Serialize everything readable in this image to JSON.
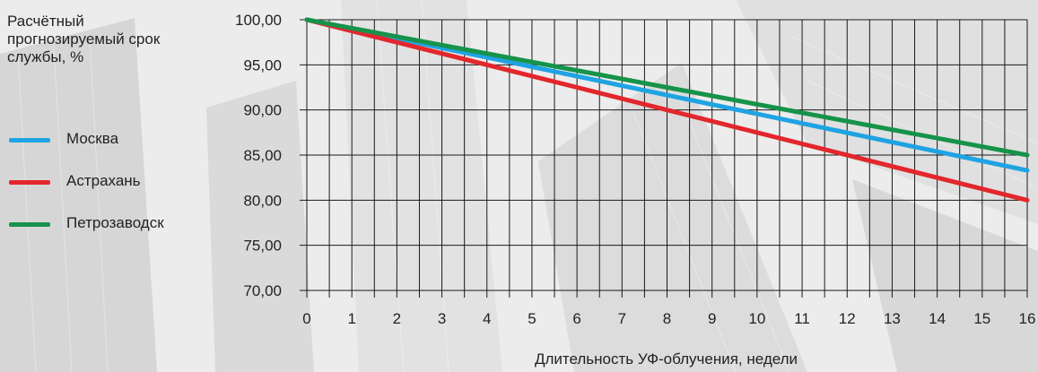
{
  "chart_data": {
    "type": "line",
    "ylabel": "Расчётный прогнозируемый срок службы, %",
    "xlabel": "Длительность УФ-облучения, недели",
    "x": [
      0,
      16
    ],
    "x_ticks": [
      "0",
      "1",
      "2",
      "3",
      "4",
      "5",
      "6",
      "7",
      "8",
      "9",
      "10",
      "11",
      "12",
      "13",
      "14",
      "15",
      "16"
    ],
    "y_ticks": [
      "100,00",
      "95,00",
      "90,00",
      "85,00",
      "80,00",
      "75,00",
      "70,00"
    ],
    "xlim": [
      0,
      16
    ],
    "ylim": [
      70,
      100
    ],
    "grid": true,
    "legend_position": "left",
    "series": [
      {
        "name": "Москва",
        "color": "#1fa3e3",
        "values": [
          100,
          83.3
        ]
      },
      {
        "name": "Астрахань",
        "color": "#e3262d",
        "values": [
          100,
          80
        ]
      },
      {
        "name": "Петрозаводск",
        "color": "#16934a",
        "values": [
          100,
          85
        ]
      }
    ]
  }
}
